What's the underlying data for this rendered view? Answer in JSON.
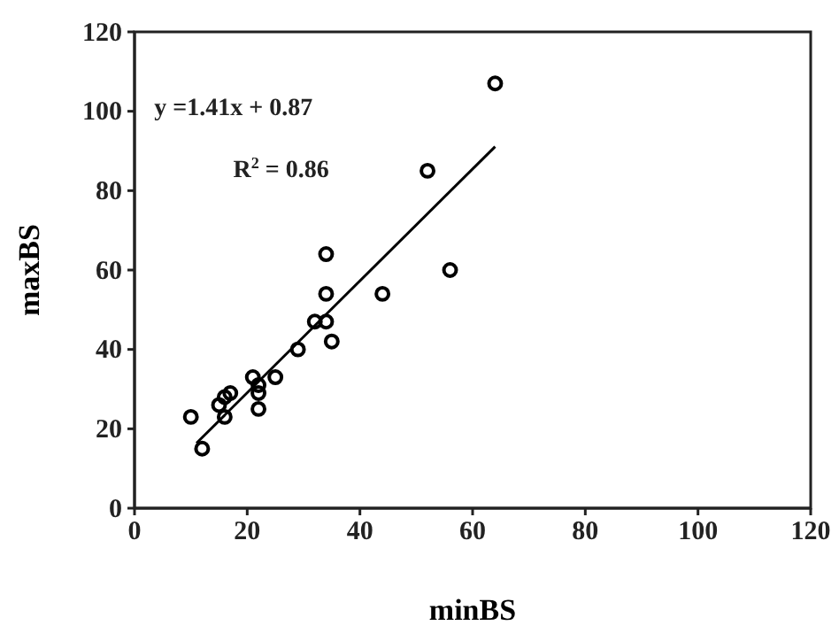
{
  "chart_data": {
    "type": "scatter",
    "xlabel": "minBS",
    "ylabel": "maxBS",
    "annotations": [
      "y =1.41x + 0.87",
      "R$^{2}$ = 0.86"
    ],
    "xlim": [
      0,
      120
    ],
    "ylim": [
      0,
      120
    ],
    "xticks": [
      0,
      20,
      40,
      60,
      80,
      100,
      120
    ],
    "yticks": [
      0,
      20,
      40,
      60,
      80,
      100,
      120
    ],
    "grid": false,
    "series": [
      {
        "color": "#000000",
        "marker": "circle",
        "x": [
          10,
          12,
          15,
          16,
          16,
          17,
          21,
          22,
          22,
          22,
          25,
          29,
          32,
          34,
          34,
          34,
          35,
          44,
          52,
          56,
          64
        ],
        "values": [
          23,
          15,
          26,
          23,
          28,
          29,
          33,
          31,
          29,
          25,
          33,
          40,
          47,
          47,
          54,
          64,
          42,
          54,
          85,
          60,
          107
        ]
      },
      {
        "type": "line",
        "color": "#000000",
        "line_style": "solid",
        "x": [
          11,
          64
        ],
        "values": [
          16.4,
          91.1
        ]
      }
    ]
  }
}
